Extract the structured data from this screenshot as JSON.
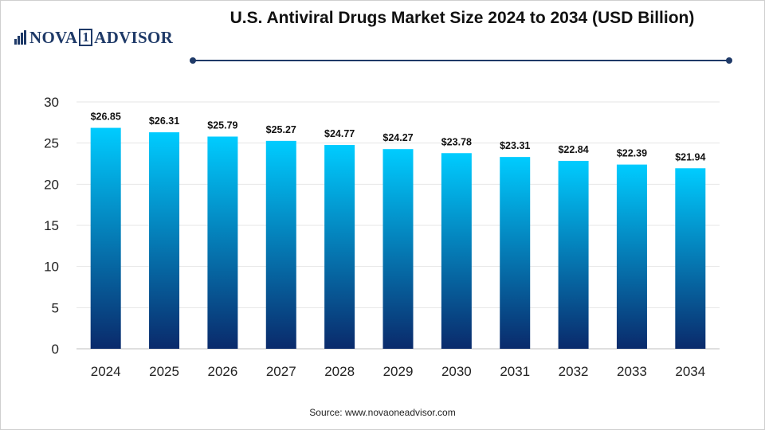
{
  "header": {
    "logo_text_left": "NOVA",
    "logo_text_box": "1",
    "logo_text_right": "ADVISOR",
    "title": "U.S. Antiviral Drugs Market Size 2024 to 2034 (USD Billion)"
  },
  "footer": {
    "source": "Source: www.novaoneadvisor.com"
  },
  "colors": {
    "bar_top": "#00ccff",
    "bar_bottom": "#0a2a6b",
    "axis": "#bfbfbf",
    "grid": "#e6e6e6"
  },
  "chart_data": {
    "type": "bar",
    "title": "U.S. Antiviral Drugs Market Size 2024 to 2034 (USD Billion)",
    "xlabel": "",
    "ylabel": "",
    "categories": [
      "2024",
      "2025",
      "2026",
      "2027",
      "2028",
      "2029",
      "2030",
      "2031",
      "2032",
      "2033",
      "2034"
    ],
    "values": [
      26.85,
      26.31,
      25.79,
      25.27,
      24.77,
      24.27,
      23.78,
      23.31,
      22.84,
      22.39,
      21.94
    ],
    "labels": [
      "$26.85",
      "$26.31",
      "$25.79",
      "$25.27",
      "$24.77",
      "$24.27",
      "$23.78",
      "$23.31",
      "$22.84",
      "$22.39",
      "$21.94"
    ],
    "ylim": [
      0,
      30
    ],
    "yticks": [
      0,
      5,
      10,
      15,
      20,
      25,
      30
    ],
    "grid": true,
    "legend": "none"
  }
}
